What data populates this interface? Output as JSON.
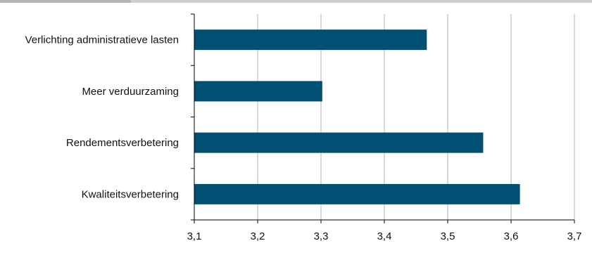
{
  "chart_data": {
    "type": "bar",
    "orientation": "horizontal",
    "title": "",
    "xlabel": "",
    "ylabel": "",
    "categories": [
      "Verlichting administratieve lasten",
      "Meer verduurzaming",
      "Rendementsverbetering",
      "Kwaliteitsverbetering"
    ],
    "values": [
      3.467,
      3.302,
      3.556,
      3.614
    ],
    "xlim": [
      3.1,
      3.7
    ],
    "xticks": [
      3.1,
      3.2,
      3.3,
      3.4,
      3.5,
      3.6,
      3.7
    ],
    "tick_labels": [
      "3,1",
      "3,2",
      "3,3",
      "3,4",
      "3,5",
      "3,6",
      "3,7"
    ],
    "grid": "vertical",
    "legend": "none",
    "bar_color": "#005073",
    "grid_color": "#b3b3b3",
    "axis_color": "#000000"
  }
}
